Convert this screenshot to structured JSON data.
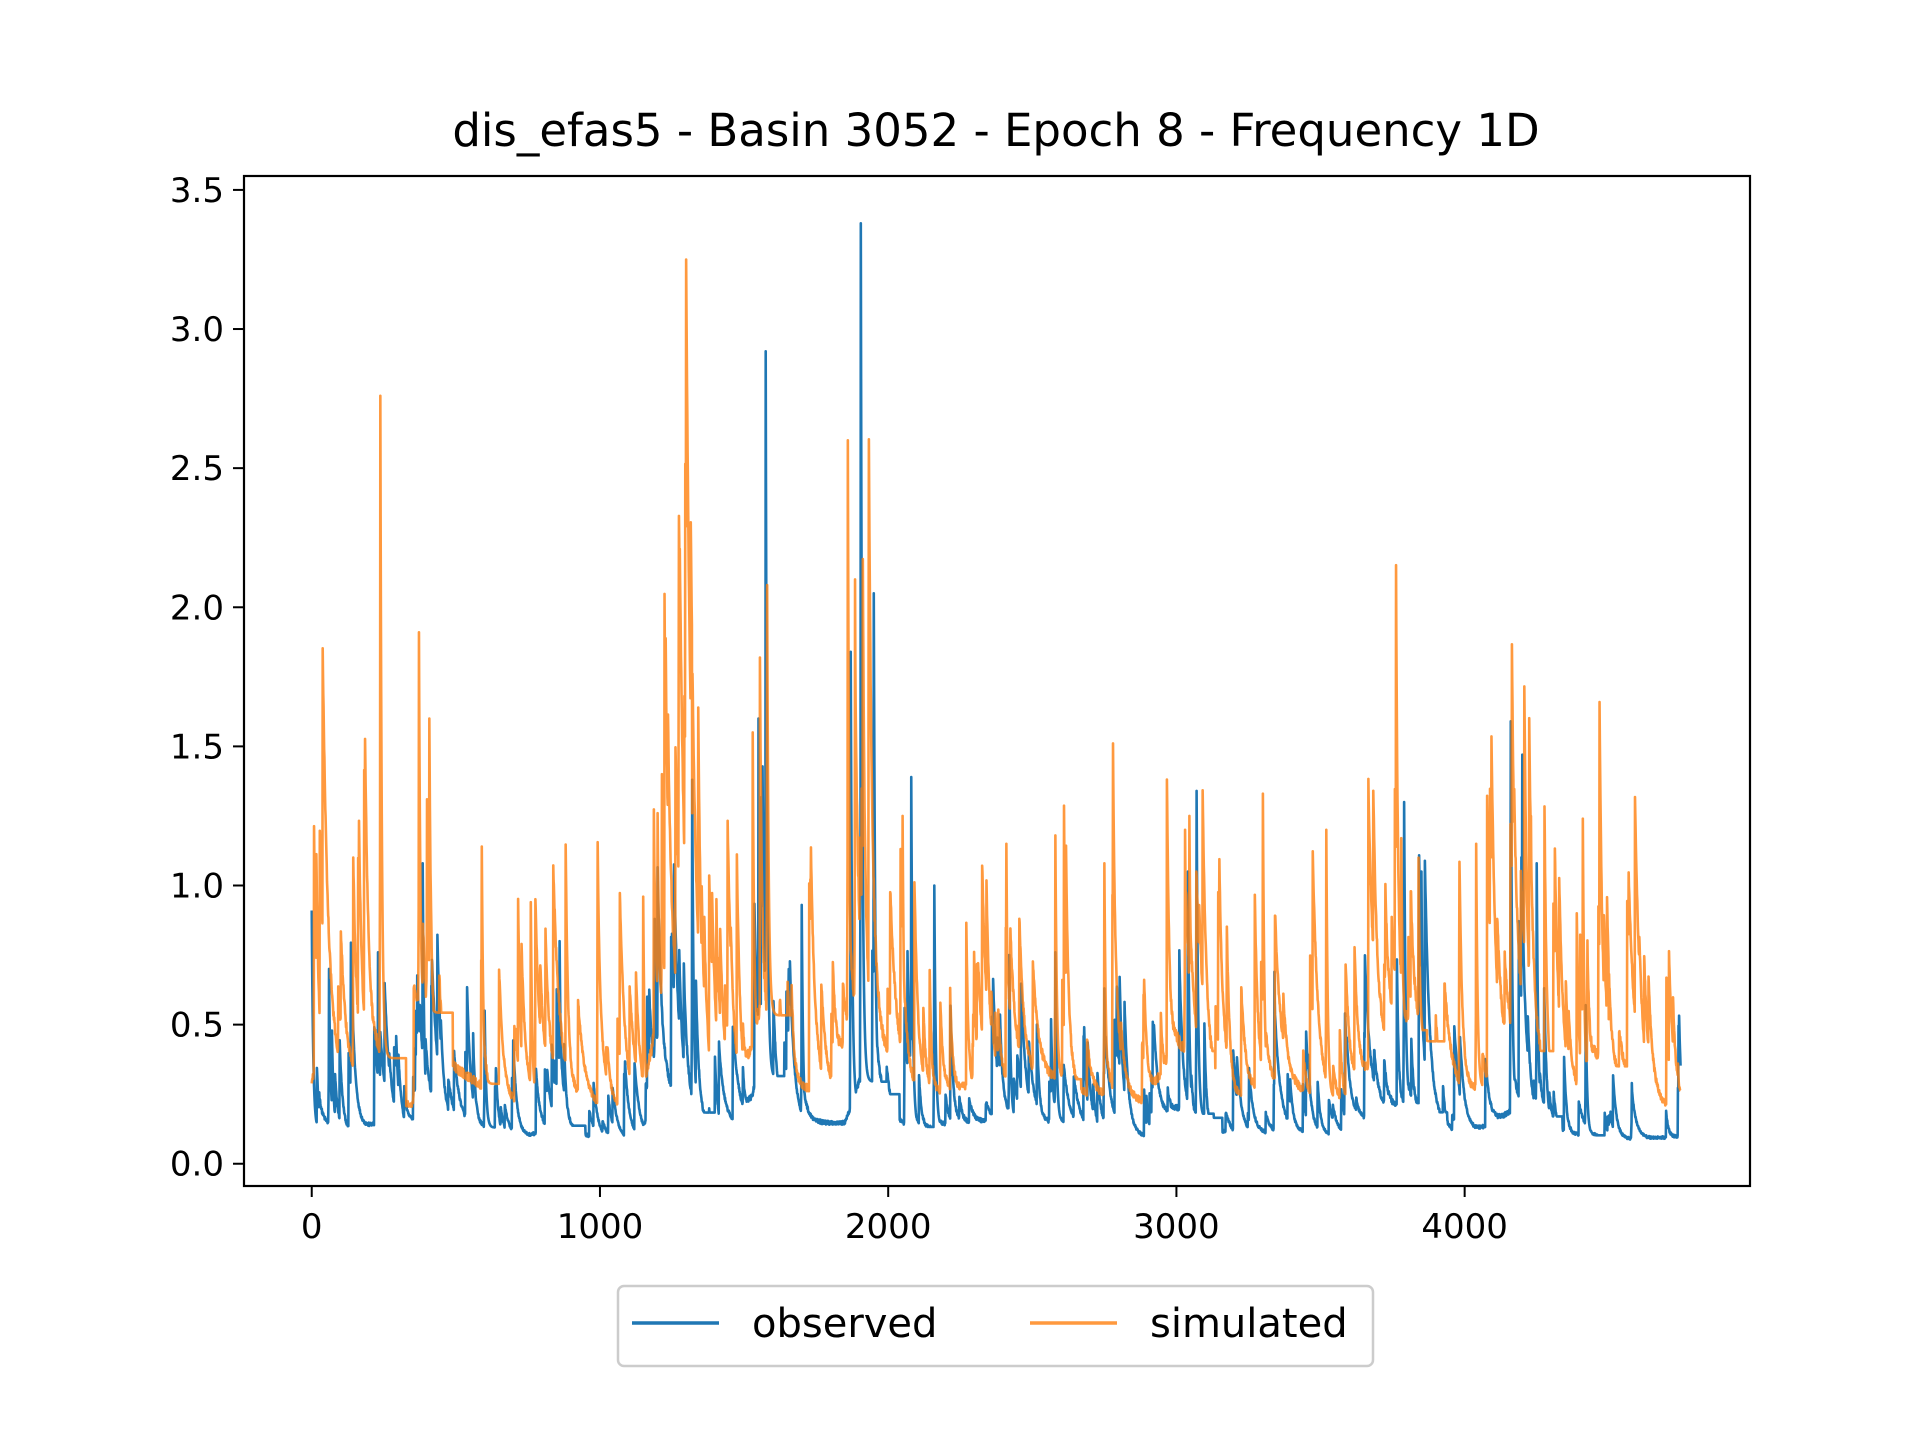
{
  "chart_data": {
    "type": "line",
    "title": "dis_efas5 - Basin 3052 - Epoch 8 - Frequency 1D",
    "xlabel": "",
    "ylabel": "",
    "xlim": [
      -235,
      4990
    ],
    "ylim": [
      -0.08,
      3.55
    ],
    "xticks": [
      0,
      1000,
      2000,
      3000,
      4000
    ],
    "xtick_labels": [
      "0",
      "1000",
      "2000",
      "3000",
      "4000"
    ],
    "yticks": [
      0.0,
      0.5,
      1.0,
      1.5,
      2.0,
      2.5,
      3.0,
      3.5
    ],
    "ytick_labels": [
      "0.0",
      "0.5",
      "1.0",
      "1.5",
      "2.0",
      "2.5",
      "3.0",
      "3.5"
    ],
    "grid": false,
    "legend": {
      "position": "bottom-center",
      "columns": 2
    },
    "colors": {
      "observed": "#1f77b4",
      "simulated": "#ff7f0e"
    },
    "series": [
      {
        "name": "observed",
        "base": [
          [
            0,
            0.12
          ],
          [
            20,
            0.15
          ],
          [
            100,
            0.12
          ],
          [
            150,
            0.11
          ],
          [
            230,
            0.15
          ],
          [
            300,
            0.1
          ],
          [
            330,
            0.09
          ],
          [
            370,
            0.18
          ],
          [
            500,
            0.13
          ],
          [
            600,
            0.13
          ],
          [
            650,
            0.1
          ],
          [
            750,
            0.1
          ],
          [
            850,
            0.14
          ],
          [
            1000,
            0.09
          ],
          [
            1150,
            0.09
          ],
          [
            1200,
            0.3
          ],
          [
            1300,
            0.2
          ],
          [
            1400,
            0.12
          ],
          [
            1500,
            0.14
          ],
          [
            1560,
            0.35
          ],
          [
            1650,
            0.1
          ],
          [
            1750,
            0.15
          ],
          [
            1850,
            0.15
          ],
          [
            1900,
            0.3
          ],
          [
            2050,
            0.15
          ],
          [
            2100,
            0.12
          ],
          [
            2250,
            0.15
          ],
          [
            2400,
            0.16
          ],
          [
            2500,
            0.14
          ],
          [
            2600,
            0.15
          ],
          [
            2700,
            0.12
          ],
          [
            2800,
            0.12
          ],
          [
            2900,
            0.1
          ],
          [
            3000,
            0.2
          ],
          [
            3100,
            0.15
          ],
          [
            3200,
            0.1
          ],
          [
            3400,
            0.12
          ],
          [
            3500,
            0.11
          ],
          [
            3600,
            0.1
          ],
          [
            3700,
            0.2
          ],
          [
            3800,
            0.22
          ],
          [
            3900,
            0.15
          ],
          [
            4000,
            0.1
          ],
          [
            4100,
            0.15
          ],
          [
            4200,
            0.22
          ],
          [
            4300,
            0.12
          ],
          [
            4500,
            0.09
          ],
          [
            4600,
            0.09
          ],
          [
            4750,
            0.1
          ]
        ],
        "peaks": [
          [
            0,
            0.91
          ],
          [
            60,
            0.7
          ],
          [
            230,
            0.76
          ],
          [
            385,
            1.08
          ],
          [
            600,
            0.55
          ],
          [
            860,
            0.8
          ],
          [
            1190,
            0.88
          ],
          [
            1320,
            1.38
          ],
          [
            1550,
            1.6
          ],
          [
            1575,
            2.92
          ],
          [
            1700,
            0.93
          ],
          [
            1870,
            1.84
          ],
          [
            1905,
            3.38
          ],
          [
            1950,
            2.05
          ],
          [
            2080,
            1.39
          ],
          [
            2160,
            1.0
          ],
          [
            2420,
            0.75
          ],
          [
            2580,
            0.76
          ],
          [
            2750,
            0.63
          ],
          [
            3040,
            1.05
          ],
          [
            3070,
            1.34
          ],
          [
            3340,
            0.69
          ],
          [
            3790,
            1.3
          ],
          [
            3850,
            1.05
          ],
          [
            4160,
            1.59
          ],
          [
            4200,
            1.47
          ],
          [
            4250,
            1.08
          ],
          [
            4420,
            0.57
          ],
          [
            4580,
            0.29
          ]
        ]
      },
      {
        "name": "simulated",
        "base": [
          [
            0,
            0.3
          ],
          [
            20,
            0.4
          ],
          [
            100,
            0.3
          ],
          [
            150,
            0.32
          ],
          [
            230,
            0.4
          ],
          [
            300,
            0.22
          ],
          [
            350,
            0.22
          ],
          [
            380,
            0.6
          ],
          [
            450,
            0.4
          ],
          [
            500,
            0.35
          ],
          [
            600,
            0.28
          ],
          [
            650,
            0.22
          ],
          [
            750,
            0.22
          ],
          [
            850,
            0.3
          ],
          [
            1000,
            0.2
          ],
          [
            1150,
            0.2
          ],
          [
            1200,
            0.55
          ],
          [
            1300,
            0.4
          ],
          [
            1400,
            0.22
          ],
          [
            1500,
            0.25
          ],
          [
            1560,
            0.6
          ],
          [
            1650,
            0.3
          ],
          [
            1800,
            0.25
          ],
          [
            1870,
            0.5
          ],
          [
            1950,
            0.45
          ],
          [
            2050,
            0.3
          ],
          [
            2100,
            0.25
          ],
          [
            2250,
            0.28
          ],
          [
            2400,
            0.3
          ],
          [
            2500,
            0.32
          ],
          [
            2600,
            0.3
          ],
          [
            2700,
            0.25
          ],
          [
            2800,
            0.25
          ],
          [
            2900,
            0.22
          ],
          [
            3000,
            0.45
          ],
          [
            3100,
            0.35
          ],
          [
            3200,
            0.23
          ],
          [
            3300,
            0.28
          ],
          [
            3400,
            0.28
          ],
          [
            3500,
            0.24
          ],
          [
            3600,
            0.22
          ],
          [
            3700,
            0.4
          ],
          [
            3800,
            0.5
          ],
          [
            3900,
            0.35
          ],
          [
            4000,
            0.25
          ],
          [
            4100,
            0.3
          ],
          [
            4200,
            0.45
          ],
          [
            4300,
            0.3
          ],
          [
            4400,
            0.25
          ],
          [
            4450,
            0.4
          ],
          [
            4550,
            0.3
          ],
          [
            4650,
            0.22
          ],
          [
            4750,
            0.2
          ]
        ],
        "peaks": [
          [
            10,
            1.03
          ],
          [
            238,
            2.76
          ],
          [
            372,
            1.91
          ],
          [
            400,
            1.31
          ],
          [
            590,
            1.14
          ],
          [
            760,
            0.94
          ],
          [
            1150,
            0.96
          ],
          [
            1200,
            1.26
          ],
          [
            1215,
            1.4
          ],
          [
            1320,
            1.26
          ],
          [
            1530,
            1.55
          ],
          [
            1580,
            2.08
          ],
          [
            1860,
            2.6
          ],
          [
            1885,
            2.1
          ],
          [
            2050,
            1.25
          ],
          [
            2410,
            1.15
          ],
          [
            2580,
            1.18
          ],
          [
            2750,
            1.08
          ],
          [
            3030,
            1.2
          ],
          [
            3045,
            1.25
          ],
          [
            3300,
            1.33
          ],
          [
            3520,
            1.2
          ],
          [
            3780,
            1.17
          ],
          [
            3840,
            1.1
          ],
          [
            4040,
            1.15
          ],
          [
            4170,
            1.27
          ],
          [
            4230,
            1.25
          ],
          [
            4410,
            1.24
          ],
          [
            4500,
            0.52
          ],
          [
            4740,
            0.36
          ]
        ]
      }
    ]
  }
}
